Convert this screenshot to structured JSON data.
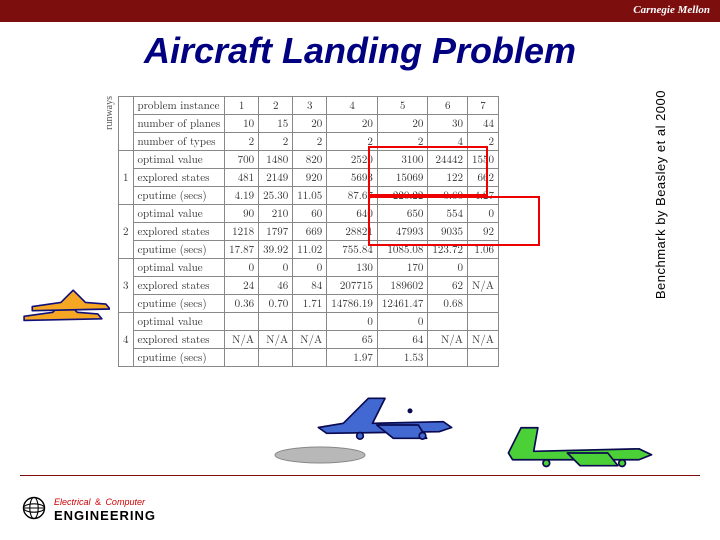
{
  "header": {
    "brand": "Carnegie Mellon",
    "title": "Aircraft Landing Problem"
  },
  "table": {
    "vert_label": "runways",
    "side_caption": "Benchmark by Beasley et al 2000",
    "header_cells": [
      "problem instance",
      "1",
      "2",
      "3",
      "4",
      "5",
      "6",
      "7"
    ],
    "row2": [
      "number of planes",
      "10",
      "15",
      "20",
      "20",
      "20",
      "30",
      "44"
    ],
    "row3": [
      "number of types",
      "2",
      "2",
      "2",
      "2",
      "2",
      "4",
      "2"
    ],
    "groups": [
      {
        "idx": "1",
        "rows": [
          [
            "optimal value",
            "700",
            "1480",
            "820",
            "2520",
            "3100",
            "24442",
            "1550"
          ],
          [
            "explored states",
            "481",
            "2149",
            "920",
            "5693",
            "15069",
            "122",
            "662"
          ],
          [
            "cputime (secs)",
            "4.19",
            "25.30",
            "11.05",
            "87.67",
            "220.22",
            "0.60",
            "4.27"
          ]
        ]
      },
      {
        "idx": "2",
        "rows": [
          [
            "optimal value",
            "90",
            "210",
            "60",
            "640",
            "650",
            "554",
            "0"
          ],
          [
            "explored states",
            "1218",
            "1797",
            "669",
            "28821",
            "47993",
            "9035",
            "92"
          ],
          [
            "cputime (secs)",
            "17.87",
            "39.92",
            "11.02",
            "755.84",
            "1085.08",
            "123.72",
            "1.06"
          ]
        ]
      },
      {
        "idx": "3",
        "rows": [
          [
            "optimal value",
            "0",
            "0",
            "0",
            "130",
            "170",
            "0",
            ""
          ],
          [
            "explored states",
            "24",
            "46",
            "84",
            "207715",
            "189602",
            "62",
            "N/A"
          ],
          [
            "cputime (secs)",
            "0.36",
            "0.70",
            "1.71",
            "14786.19",
            "12461.47",
            "0.68",
            ""
          ]
        ]
      },
      {
        "idx": "4",
        "rows": [
          [
            "optimal value",
            "",
            "",
            "",
            "0",
            "0",
            "",
            ""
          ],
          [
            "explored states",
            "N/A",
            "N/A",
            "N/A",
            "65",
            "64",
            "N/A",
            "N/A"
          ],
          [
            "cputime (secs)",
            "",
            "",
            "",
            "1.97",
            "1.53",
            "",
            ""
          ]
        ]
      }
    ]
  },
  "planes": {
    "orange_fill": "#f5a623",
    "blue_fill": "#4169d1",
    "green_fill": "#4cd038",
    "outline": "#10107a"
  },
  "footer": {
    "ece_top": "Electrical",
    "ece_sep": "&",
    "ece_mid": "Computer",
    "ece_bot": "ENGINEERING"
  }
}
